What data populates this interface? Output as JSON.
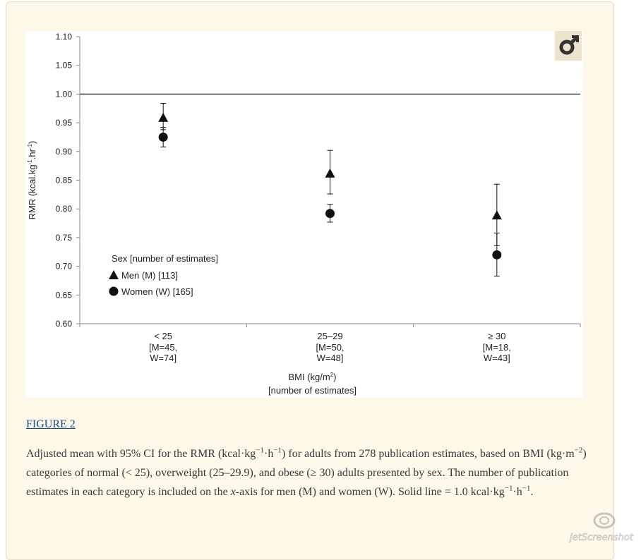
{
  "chart_data": {
    "type": "scatter",
    "categories": [
      "<  25",
      "25–29",
      "≥ 30"
    ],
    "category_notes": [
      [
        "[M=45,",
        "W=74]"
      ],
      [
        "[M=50,",
        "W=48]"
      ],
      [
        "[M=18,",
        "W=43]"
      ]
    ],
    "ylim": [
      0.6,
      1.1
    ],
    "yticks": [
      "0.60",
      "0.65",
      "0.70",
      "0.75",
      "0.80",
      "0.85",
      "0.90",
      "0.95",
      "1.00",
      "1.05",
      "1.10"
    ],
    "ylabel": "RMR (kcal.kg-1.hr-1)",
    "xlabel_line1": "BMI (kg/m2)",
    "xlabel_line2": "[number of estimates]",
    "reference_line": 1.0,
    "series": [
      {
        "name": "Men (M) [113]",
        "marker": "triangle",
        "values": [
          0.959,
          0.862,
          0.789
        ],
        "lower": [
          0.938,
          0.826,
          0.736
        ],
        "upper": [
          0.984,
          0.902,
          0.843
        ]
      },
      {
        "name": "Women (W) [165]",
        "marker": "circle",
        "values": [
          0.925,
          0.792,
          0.72
        ],
        "lower": [
          0.908,
          0.777,
          0.683
        ],
        "upper": [
          0.942,
          0.808,
          0.758
        ]
      }
    ],
    "legend": {
      "title": "Sex [number of estimates]",
      "position": "lower-left"
    },
    "grid": false
  },
  "caption": {
    "link": "FIGURE 2",
    "text": "Adjusted mean with 95% CI for the RMR (kcal·kg−1·h−1) for adults from 278 publication estimates, based on BMI (kg·m−2) categories of normal (< 25), overweight (25–29.9), and obese (≥ 30) adults presented by sex. The number of publication estimates in each category is included on the x-axis for men (M) and women (W). Solid line = 1.0 kcal·kg−1·h−1."
  },
  "icons": {
    "figure": "gender-male-icon",
    "watermark": "jetscreenshot-logo"
  },
  "watermark_text": "jetScreenshot"
}
